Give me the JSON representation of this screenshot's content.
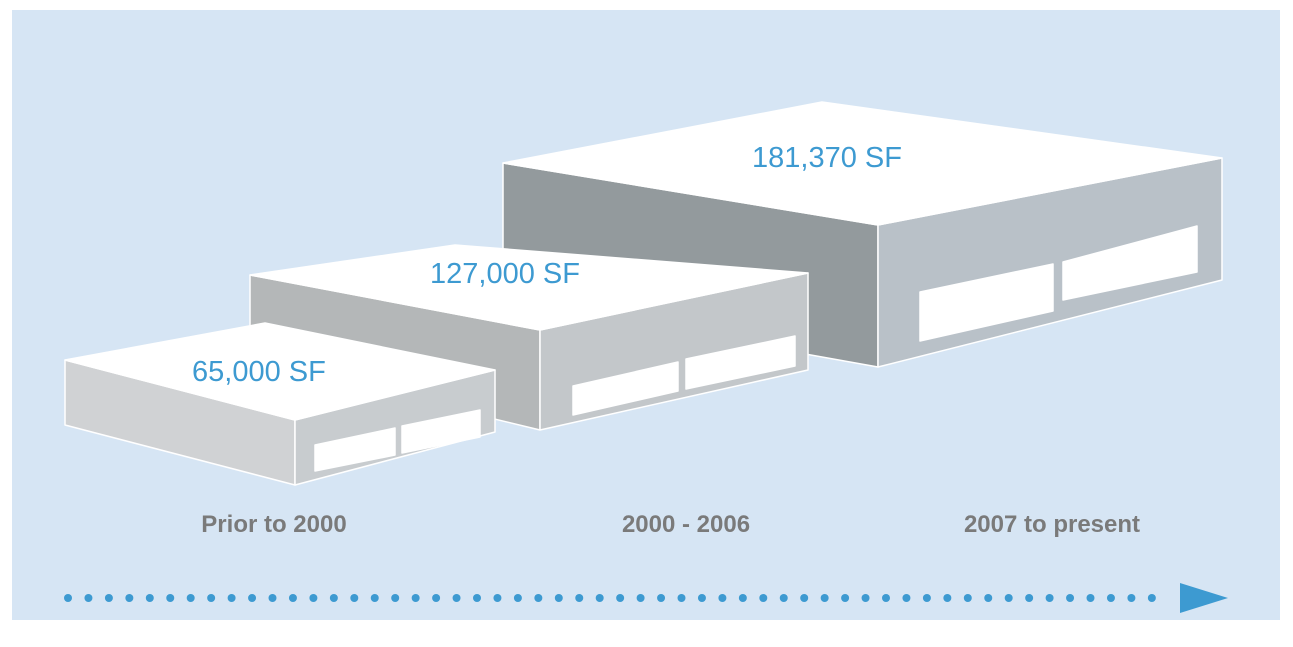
{
  "buildings": [
    {
      "area": "65,000 SF",
      "period": "Prior to 2000"
    },
    {
      "area": "127,000 SF",
      "period": "2000 - 2006"
    },
    {
      "area": "181,370 SF",
      "period": "2007 to present"
    }
  ]
}
